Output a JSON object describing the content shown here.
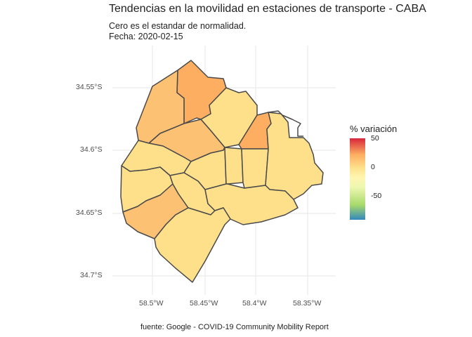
{
  "title": "Tendencias en la movilidad en estaciones de transporte - CABA",
  "subtitle_line1": "Cero es el estandar de normalidad.",
  "subtitle_line2": "Fecha: 2020-02-15",
  "caption": "fuente: Google - COVID-19 Community Mobility Report",
  "axes": {
    "lat_labels": [
      "34.55°S",
      "34.6°S",
      "34.65°S",
      "34.7°S"
    ],
    "lon_labels": [
      "58.5°W",
      "58.45°W",
      "58.4°W",
      "58.35°W"
    ]
  },
  "legend": {
    "title": "% variación",
    "ticks": [
      "50",
      "0",
      "-50"
    ],
    "colors": {
      "high": "#d7263b",
      "mid": "#fee08b",
      "low": "#3288bd"
    }
  },
  "map": {
    "region": "CABA",
    "fills": {
      "orange": "#fdae61",
      "light_orange": "#fdc173",
      "yellow": "#fee08b",
      "border": "#4a4a4a"
    }
  }
}
